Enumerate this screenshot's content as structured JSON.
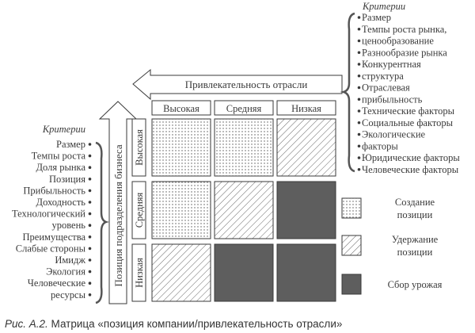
{
  "axes": {
    "horizontal_label": "Привлекательность отрасли",
    "vertical_label": "Позиция подразделения бизнеса",
    "columns": [
      "Высокая",
      "Средняя",
      "Низкая"
    ],
    "rows": [
      "Высокая",
      "Средняя",
      "Низкая"
    ]
  },
  "matrix": [
    [
      "create",
      "create",
      "hold"
    ],
    [
      "create",
      "hold",
      "harvest"
    ],
    [
      "hold",
      "harvest",
      "harvest"
    ]
  ],
  "left_criteria": {
    "title": "Критерии",
    "items": [
      "Размер",
      "Темпы роста",
      "Доля рынка",
      "Позиция",
      "Прибыльность",
      "Доходность",
      "Технологический",
      "уровень",
      "Преимущества",
      "Слабые стороны",
      "Имидж",
      "Экология",
      "Человеческие",
      "ресурсы"
    ]
  },
  "right_criteria": {
    "title": "Критерии",
    "items": [
      "Размер",
      "Темпы роста рынка,",
      "ценообразование",
      "Разнообразие рынка",
      "Конкурентная",
      "структура",
      "Отраслевая",
      "прибыльность",
      "Технические факторы",
      "Социальные факторы",
      "Экологические",
      "факторы",
      "Юридические факторы",
      "Человеческие факторы"
    ]
  },
  "legend": [
    {
      "key": "create",
      "lines": [
        "Создание",
        "позиции"
      ],
      "pattern": "dots"
    },
    {
      "key": "hold",
      "lines": [
        "Удержание",
        "позиции"
      ],
      "pattern": "hatch"
    },
    {
      "key": "harvest",
      "lines": [
        "Сбор урожая"
      ],
      "pattern": "solid"
    }
  ],
  "caption": {
    "label": "Рис. А.2.",
    "text": "Матрица «позиция компании/привлекательность отрасли»"
  },
  "colors": {
    "ink": "#3a3a3a",
    "dark_fill": "#5e5e5e"
  }
}
